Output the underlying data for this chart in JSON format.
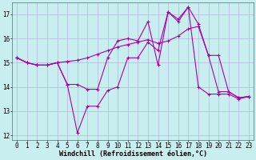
{
  "xlabel": "Windchill (Refroidissement éolien,°C)",
  "bg_color": "#c8eef0",
  "grid_color": "#b0b8d8",
  "line_color": "#aa00aa",
  "x": [
    0,
    1,
    2,
    3,
    4,
    5,
    6,
    7,
    8,
    9,
    10,
    11,
    12,
    13,
    14,
    15,
    16,
    17,
    18,
    19,
    20,
    21,
    22,
    23
  ],
  "line1": [
    15.2,
    15.0,
    14.9,
    14.9,
    15.0,
    15.05,
    15.1,
    15.2,
    15.35,
    15.5,
    15.65,
    15.75,
    15.85,
    15.95,
    15.8,
    15.9,
    16.1,
    16.4,
    16.5,
    15.3,
    15.3,
    13.8,
    13.55,
    13.6
  ],
  "line2": [
    15.2,
    15.0,
    14.9,
    14.9,
    15.0,
    14.1,
    14.1,
    13.9,
    13.9,
    15.2,
    15.9,
    16.0,
    15.9,
    16.7,
    14.9,
    17.1,
    16.8,
    17.3,
    16.6,
    15.3,
    13.8,
    13.8,
    13.55,
    13.6
  ],
  "line3": [
    15.2,
    15.0,
    14.9,
    14.9,
    15.0,
    14.1,
    12.1,
    13.2,
    13.2,
    13.85,
    14.0,
    15.2,
    15.2,
    15.85,
    15.5,
    17.1,
    16.7,
    17.3,
    14.0,
    13.7,
    13.7,
    13.7,
    13.5,
    13.6
  ],
  "ylim": [
    11.8,
    17.5
  ],
  "yticks": [
    12,
    13,
    14,
    15,
    16,
    17
  ],
  "xticks": [
    0,
    1,
    2,
    3,
    4,
    5,
    6,
    7,
    8,
    9,
    10,
    11,
    12,
    13,
    14,
    15,
    16,
    17,
    18,
    19,
    20,
    21,
    22,
    23
  ],
  "tick_fontsize": 5.5,
  "xlabel_fontsize": 6.0
}
